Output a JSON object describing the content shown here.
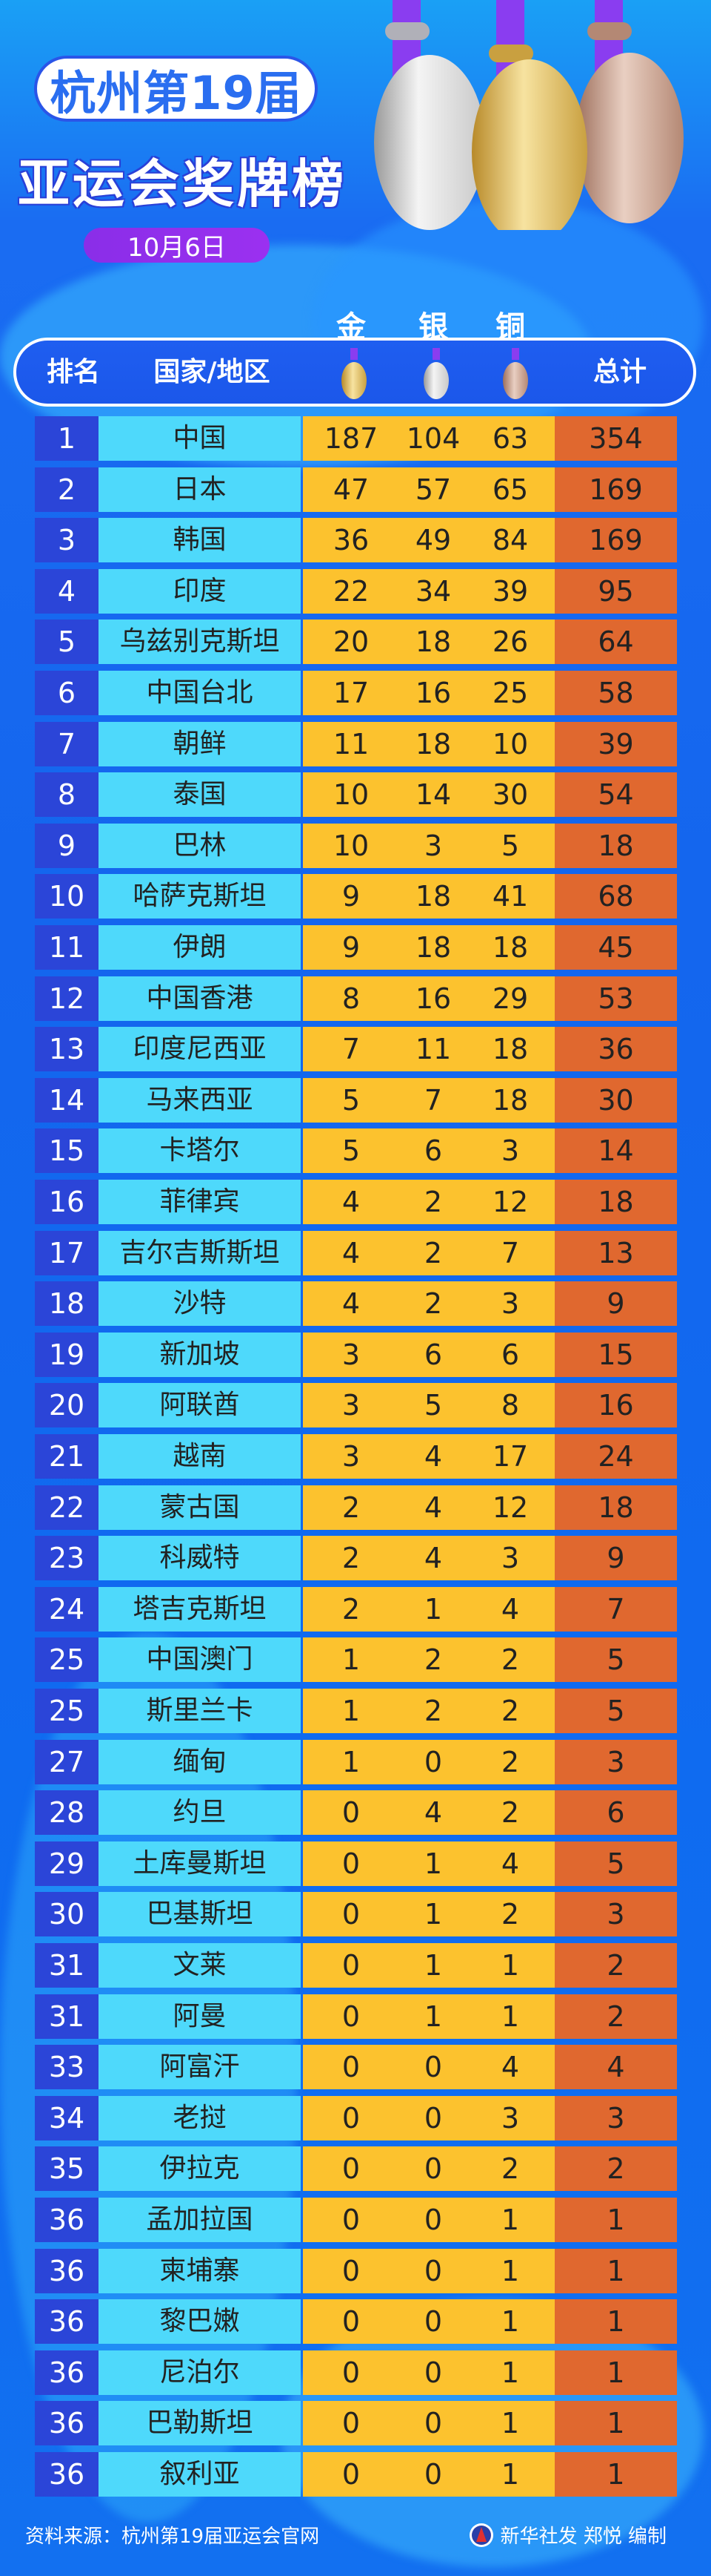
{
  "header": {
    "title_line1": "杭州第19届",
    "title_line2": "亚运会奖牌榜",
    "date": "10月6日"
  },
  "medal_labels": {
    "gold": "金",
    "silver": "银",
    "bronze": "铜"
  },
  "table_header": {
    "rank": "排名",
    "country": "国家/地区",
    "total": "总计"
  },
  "colors": {
    "rank_bg": "#2b45d8",
    "country_bg": "#4ed9fb",
    "medals_bg": "#fcc22e",
    "total_bg": "#e0682f",
    "background": "#1466ee",
    "date_pill": "#8a2ee8"
  },
  "rows": [
    {
      "rank": "1",
      "country": "中国",
      "gold": "187",
      "silver": "104",
      "bronze": "63",
      "total": "354"
    },
    {
      "rank": "2",
      "country": "日本",
      "gold": "47",
      "silver": "57",
      "bronze": "65",
      "total": "169"
    },
    {
      "rank": "3",
      "country": "韩国",
      "gold": "36",
      "silver": "49",
      "bronze": "84",
      "total": "169"
    },
    {
      "rank": "4",
      "country": "印度",
      "gold": "22",
      "silver": "34",
      "bronze": "39",
      "total": "95"
    },
    {
      "rank": "5",
      "country": "乌兹别克斯坦",
      "gold": "20",
      "silver": "18",
      "bronze": "26",
      "total": "64"
    },
    {
      "rank": "6",
      "country": "中国台北",
      "gold": "17",
      "silver": "16",
      "bronze": "25",
      "total": "58"
    },
    {
      "rank": "7",
      "country": "朝鲜",
      "gold": "11",
      "silver": "18",
      "bronze": "10",
      "total": "39"
    },
    {
      "rank": "8",
      "country": "泰国",
      "gold": "10",
      "silver": "14",
      "bronze": "30",
      "total": "54"
    },
    {
      "rank": "9",
      "country": "巴林",
      "gold": "10",
      "silver": "3",
      "bronze": "5",
      "total": "18"
    },
    {
      "rank": "10",
      "country": "哈萨克斯坦",
      "gold": "9",
      "silver": "18",
      "bronze": "41",
      "total": "68"
    },
    {
      "rank": "11",
      "country": "伊朗",
      "gold": "9",
      "silver": "18",
      "bronze": "18",
      "total": "45"
    },
    {
      "rank": "12",
      "country": "中国香港",
      "gold": "8",
      "silver": "16",
      "bronze": "29",
      "total": "53"
    },
    {
      "rank": "13",
      "country": "印度尼西亚",
      "gold": "7",
      "silver": "11",
      "bronze": "18",
      "total": "36"
    },
    {
      "rank": "14",
      "country": "马来西亚",
      "gold": "5",
      "silver": "7",
      "bronze": "18",
      "total": "30"
    },
    {
      "rank": "15",
      "country": "卡塔尔",
      "gold": "5",
      "silver": "6",
      "bronze": "3",
      "total": "14"
    },
    {
      "rank": "16",
      "country": "菲律宾",
      "gold": "4",
      "silver": "2",
      "bronze": "12",
      "total": "18"
    },
    {
      "rank": "17",
      "country": "吉尔吉斯斯坦",
      "gold": "4",
      "silver": "2",
      "bronze": "7",
      "total": "13"
    },
    {
      "rank": "18",
      "country": "沙特",
      "gold": "4",
      "silver": "2",
      "bronze": "3",
      "total": "9"
    },
    {
      "rank": "19",
      "country": "新加坡",
      "gold": "3",
      "silver": "6",
      "bronze": "6",
      "total": "15"
    },
    {
      "rank": "20",
      "country": "阿联酋",
      "gold": "3",
      "silver": "5",
      "bronze": "8",
      "total": "16"
    },
    {
      "rank": "21",
      "country": "越南",
      "gold": "3",
      "silver": "4",
      "bronze": "17",
      "total": "24"
    },
    {
      "rank": "22",
      "country": "蒙古国",
      "gold": "2",
      "silver": "4",
      "bronze": "12",
      "total": "18"
    },
    {
      "rank": "23",
      "country": "科威特",
      "gold": "2",
      "silver": "4",
      "bronze": "3",
      "total": "9"
    },
    {
      "rank": "24",
      "country": "塔吉克斯坦",
      "gold": "2",
      "silver": "1",
      "bronze": "4",
      "total": "7"
    },
    {
      "rank": "25",
      "country": "中国澳门",
      "gold": "1",
      "silver": "2",
      "bronze": "2",
      "total": "5"
    },
    {
      "rank": "25",
      "country": "斯里兰卡",
      "gold": "1",
      "silver": "2",
      "bronze": "2",
      "total": "5"
    },
    {
      "rank": "27",
      "country": "缅甸",
      "gold": "1",
      "silver": "0",
      "bronze": "2",
      "total": "3"
    },
    {
      "rank": "28",
      "country": "约旦",
      "gold": "0",
      "silver": "4",
      "bronze": "2",
      "total": "6"
    },
    {
      "rank": "29",
      "country": "土库曼斯坦",
      "gold": "0",
      "silver": "1",
      "bronze": "4",
      "total": "5"
    },
    {
      "rank": "30",
      "country": "巴基斯坦",
      "gold": "0",
      "silver": "1",
      "bronze": "2",
      "total": "3"
    },
    {
      "rank": "31",
      "country": "文莱",
      "gold": "0",
      "silver": "1",
      "bronze": "1",
      "total": "2"
    },
    {
      "rank": "31",
      "country": "阿曼",
      "gold": "0",
      "silver": "1",
      "bronze": "1",
      "total": "2"
    },
    {
      "rank": "33",
      "country": "阿富汗",
      "gold": "0",
      "silver": "0",
      "bronze": "4",
      "total": "4"
    },
    {
      "rank": "34",
      "country": "老挝",
      "gold": "0",
      "silver": "0",
      "bronze": "3",
      "total": "3"
    },
    {
      "rank": "35",
      "country": "伊拉克",
      "gold": "0",
      "silver": "0",
      "bronze": "2",
      "total": "2"
    },
    {
      "rank": "36",
      "country": "孟加拉国",
      "gold": "0",
      "silver": "0",
      "bronze": "1",
      "total": "1"
    },
    {
      "rank": "36",
      "country": "柬埔寨",
      "gold": "0",
      "silver": "0",
      "bronze": "1",
      "total": "1"
    },
    {
      "rank": "36",
      "country": "黎巴嫩",
      "gold": "0",
      "silver": "0",
      "bronze": "1",
      "total": "1"
    },
    {
      "rank": "36",
      "country": "尼泊尔",
      "gold": "0",
      "silver": "0",
      "bronze": "1",
      "total": "1"
    },
    {
      "rank": "36",
      "country": "巴勒斯坦",
      "gold": "0",
      "silver": "0",
      "bronze": "1",
      "total": "1"
    },
    {
      "rank": "36",
      "country": "叙利亚",
      "gold": "0",
      "silver": "0",
      "bronze": "1",
      "total": "1"
    }
  ],
  "footer": {
    "source": "资料来源：杭州第19届亚运会官网",
    "credit": "新华社发 郑悦 编制",
    "logo_icon": "xinhua-logo-icon"
  }
}
